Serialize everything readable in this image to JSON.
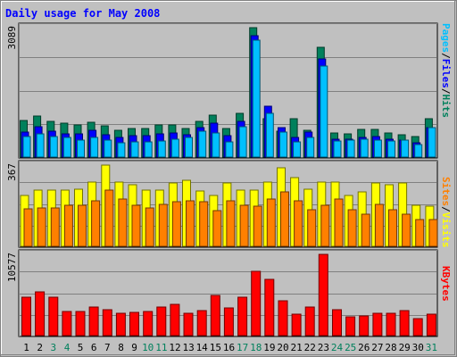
{
  "title": "Daily usage for May 2008",
  "colors": {
    "background": "#c0c0c0",
    "title": "#0000ff",
    "hits": "#00805c",
    "files": "#0000ff",
    "pages": "#00c0ff",
    "visits": "#ffff00",
    "sites": "#ff8000",
    "kbytes": "#ff0000",
    "weekend_label": "#00805c",
    "weekday_label": "#000000"
  },
  "chart_data": [
    {
      "type": "bar",
      "panel": "top",
      "y_max_label": "3089",
      "ylim": [
        0,
        3089
      ],
      "grid": true,
      "legend": [
        "Pages",
        "/",
        "Files",
        "/",
        "Hits"
      ],
      "categories": [
        "1",
        "2",
        "3",
        "4",
        "5",
        "6",
        "7",
        "8",
        "9",
        "10",
        "11",
        "12",
        "13",
        "14",
        "15",
        "16",
        "17",
        "18",
        "19",
        "20",
        "21",
        "22",
        "23",
        "24",
        "25",
        "26",
        "27",
        "28",
        "29",
        "30",
        "31"
      ],
      "series": [
        {
          "name": "Hits",
          "values": [
            870,
            980,
            860,
            800,
            760,
            840,
            740,
            630,
            680,
            690,
            760,
            760,
            690,
            860,
            1000,
            680,
            1050,
            3089,
            920,
            620,
            910,
            630,
            2620,
            570,
            560,
            670,
            650,
            580,
            540,
            500,
            920
          ]
        },
        {
          "name": "Files",
          "values": [
            600,
            720,
            620,
            560,
            550,
            640,
            540,
            460,
            520,
            520,
            560,
            580,
            540,
            700,
            810,
            510,
            850,
            2900,
            1220,
            710,
            460,
            600,
            2340,
            420,
            430,
            470,
            480,
            420,
            410,
            350,
            700
          ]
        },
        {
          "name": "Pages",
          "values": [
            480,
            560,
            490,
            460,
            400,
            460,
            400,
            350,
            360,
            360,
            390,
            420,
            460,
            620,
            570,
            370,
            730,
            2800,
            1040,
            600,
            370,
            460,
            2180,
            380,
            400,
            420,
            410,
            390,
            400,
            300,
            700
          ]
        }
      ]
    },
    {
      "type": "bar",
      "panel": "middle",
      "y_max_label": "367",
      "ylim": [
        0,
        367
      ],
      "grid": true,
      "legend": [
        "Sites",
        "/",
        "Visits"
      ],
      "categories": [
        "1",
        "2",
        "3",
        "4",
        "5",
        "6",
        "7",
        "8",
        "9",
        "10",
        "11",
        "12",
        "13",
        "14",
        "15",
        "16",
        "17",
        "18",
        "19",
        "20",
        "21",
        "22",
        "23",
        "24",
        "25",
        "26",
        "27",
        "28",
        "29",
        "30",
        "31"
      ],
      "series": [
        {
          "name": "Visits",
          "values": [
            230,
            255,
            255,
            255,
            260,
            290,
            367,
            290,
            280,
            255,
            255,
            285,
            300,
            250,
            230,
            285,
            255,
            255,
            290,
            355,
            310,
            260,
            290,
            290,
            230,
            245,
            285,
            280,
            285,
            185,
            180
          ]
        },
        {
          "name": "Sites",
          "values": [
            170,
            175,
            175,
            185,
            185,
            205,
            255,
            215,
            185,
            175,
            190,
            200,
            205,
            200,
            160,
            205,
            185,
            180,
            215,
            245,
            205,
            165,
            185,
            215,
            165,
            145,
            190,
            165,
            145,
            120,
            120
          ]
        }
      ]
    },
    {
      "type": "bar",
      "panel": "bottom",
      "y_max_label": "10577",
      "ylim": [
        0,
        10577
      ],
      "grid": true,
      "legend": [
        "KBytes"
      ],
      "categories": [
        "1",
        "2",
        "3",
        "4",
        "5",
        "6",
        "7",
        "8",
        "9",
        "10",
        "11",
        "12",
        "13",
        "14",
        "15",
        "16",
        "17",
        "18",
        "19",
        "20",
        "21",
        "22",
        "23",
        "24",
        "25",
        "26",
        "27",
        "28",
        "29",
        "30",
        "31"
      ],
      "series": [
        {
          "name": "KBytes",
          "values": [
            5050,
            5700,
            4950,
            3150,
            3100,
            3700,
            3350,
            2950,
            3050,
            3100,
            3700,
            4050,
            2900,
            3200,
            5200,
            3550,
            4950,
            8400,
            7300,
            4550,
            2800,
            3750,
            10577,
            3400,
            2400,
            2550,
            2850,
            2850,
            3200,
            2200,
            2800
          ]
        }
      ]
    }
  ]
}
